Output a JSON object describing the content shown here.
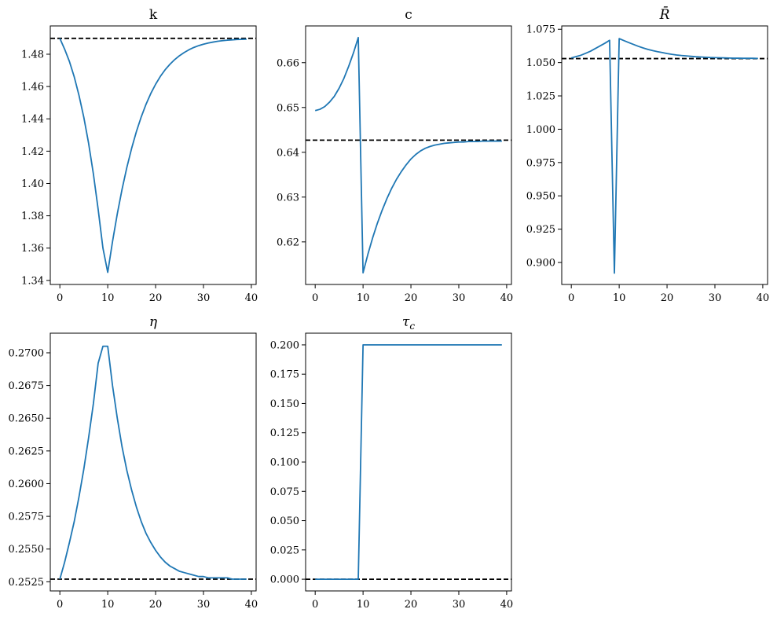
{
  "colors": {
    "series": "#1f77b4",
    "steady_state": "#000000"
  },
  "chart_data": [
    {
      "type": "line",
      "title": "k",
      "xlim": [
        -2,
        41
      ],
      "ylim": [
        1.3375,
        1.4975
      ],
      "xticks": [
        0,
        10,
        20,
        30,
        40
      ],
      "xtick_labels": [
        "0",
        "10",
        "20",
        "30",
        "40"
      ],
      "yticks": [
        1.34,
        1.36,
        1.38,
        1.4,
        1.42,
        1.44,
        1.46,
        1.48
      ],
      "ytick_labels": [
        "1.34",
        "1.36",
        "1.38",
        "1.40",
        "1.42",
        "1.44",
        "1.46",
        "1.48"
      ],
      "steady_state": 1.4898,
      "x": [
        0,
        1,
        2,
        3,
        4,
        5,
        6,
        7,
        8,
        9,
        10,
        11,
        12,
        13,
        14,
        15,
        16,
        17,
        18,
        19,
        20,
        21,
        22,
        23,
        24,
        25,
        26,
        27,
        28,
        29,
        30,
        31,
        32,
        33,
        34,
        35,
        36,
        37,
        38,
        39
      ],
      "values": [
        1.4898,
        1.4831,
        1.4755,
        1.466,
        1.4545,
        1.441,
        1.425,
        1.406,
        1.384,
        1.36,
        1.345,
        1.364,
        1.3812,
        1.3965,
        1.41,
        1.4218,
        1.4322,
        1.4412,
        1.449,
        1.4557,
        1.4614,
        1.4663,
        1.4704,
        1.4738,
        1.4767,
        1.4791,
        1.4811,
        1.4828,
        1.4842,
        1.4853,
        1.4862,
        1.4869,
        1.4875,
        1.488,
        1.4884,
        1.4887,
        1.4889,
        1.4891,
        1.4892,
        1.4893
      ]
    },
    {
      "type": "line",
      "title": "c",
      "xlim": [
        -2,
        41
      ],
      "ylim": [
        0.6105,
        0.6682
      ],
      "xticks": [
        0,
        10,
        20,
        30,
        40
      ],
      "xtick_labels": [
        "0",
        "10",
        "20",
        "30",
        "40"
      ],
      "yticks": [
        0.62,
        0.63,
        0.64,
        0.65,
        0.66
      ],
      "ytick_labels": [
        "0.62",
        "0.63",
        "0.64",
        "0.65",
        "0.66"
      ],
      "steady_state": 0.6427,
      "x": [
        0,
        1,
        2,
        3,
        4,
        5,
        6,
        7,
        8,
        9,
        10,
        11,
        12,
        13,
        14,
        15,
        16,
        17,
        18,
        19,
        20,
        21,
        22,
        23,
        24,
        25,
        26,
        27,
        28,
        29,
        30,
        31,
        32,
        33,
        34,
        35,
        36,
        37,
        38,
        39
      ],
      "values": [
        0.6493,
        0.6496,
        0.6502,
        0.6512,
        0.6525,
        0.6543,
        0.6565,
        0.6592,
        0.6622,
        0.6656,
        0.6131,
        0.6172,
        0.6209,
        0.6242,
        0.6271,
        0.6297,
        0.632,
        0.634,
        0.6357,
        0.6372,
        0.6385,
        0.6395,
        0.6403,
        0.6409,
        0.6413,
        0.6416,
        0.6418,
        0.642,
        0.6421,
        0.6422,
        0.6423,
        0.6423,
        0.6424,
        0.6424,
        0.6424,
        0.6425,
        0.6425,
        0.6425,
        0.6425,
        0.6425
      ]
    },
    {
      "type": "line",
      "title": "R̄",
      "xlim": [
        -2,
        41
      ],
      "ylim": [
        0.8835,
        1.0775
      ],
      "xticks": [
        0,
        10,
        20,
        30,
        40
      ],
      "xtick_labels": [
        "0",
        "10",
        "20",
        "30",
        "40"
      ],
      "yticks": [
        0.9,
        0.925,
        0.95,
        0.975,
        1.0,
        1.025,
        1.05,
        1.075
      ],
      "ytick_labels": [
        "0.900",
        "0.925",
        "0.950",
        "0.975",
        "1.000",
        "1.025",
        "1.050",
        "1.075"
      ],
      "steady_state": 1.053,
      "x": [
        0,
        1,
        2,
        3,
        4,
        5,
        6,
        7,
        8,
        9,
        10,
        11,
        12,
        13,
        14,
        15,
        16,
        17,
        18,
        19,
        20,
        21,
        22,
        23,
        24,
        25,
        26,
        27,
        28,
        29,
        30,
        31,
        32,
        33,
        34,
        35,
        36,
        37,
        38,
        39
      ],
      "values": [
        1.0535,
        1.0545,
        1.0555,
        1.057,
        1.0585,
        1.0605,
        1.0625,
        1.0645,
        1.0667,
        0.892,
        1.068,
        1.0665,
        1.065,
        1.0636,
        1.0622,
        1.061,
        1.0599,
        1.059,
        1.0582,
        1.0575,
        1.0568,
        1.0562,
        1.0557,
        1.0553,
        1.055,
        1.0547,
        1.0544,
        1.0542,
        1.054,
        1.0538,
        1.0537,
        1.0536,
        1.0535,
        1.0534,
        1.0533,
        1.0533,
        1.0532,
        1.0532,
        1.0532,
        1.0531
      ]
    },
    {
      "type": "line",
      "title": "η",
      "xlim": [
        -2,
        41
      ],
      "ylim": [
        0.2518,
        0.2715
      ],
      "xticks": [
        0,
        10,
        20,
        30,
        40
      ],
      "xtick_labels": [
        "0",
        "10",
        "20",
        "30",
        "40"
      ],
      "yticks": [
        0.2525,
        0.255,
        0.2575,
        0.26,
        0.2625,
        0.265,
        0.2675,
        0.27
      ],
      "ytick_labels": [
        "0.2525",
        "0.2550",
        "0.2575",
        "0.2600",
        "0.2625",
        "0.2650",
        "0.2675",
        "0.2700"
      ],
      "steady_state": 0.2527,
      "x": [
        0,
        1,
        2,
        3,
        4,
        5,
        6,
        7,
        8,
        9,
        10,
        11,
        12,
        13,
        14,
        15,
        16,
        17,
        18,
        19,
        20,
        21,
        22,
        23,
        24,
        25,
        26,
        27,
        28,
        29,
        30,
        31,
        32,
        33,
        34,
        35,
        36,
        37,
        38,
        39
      ],
      "values": [
        0.2527,
        0.254,
        0.2555,
        0.2571,
        0.259,
        0.2611,
        0.2635,
        0.2661,
        0.2692,
        0.2705,
        0.2705,
        0.2675,
        0.265,
        0.2628,
        0.261,
        0.2595,
        0.2582,
        0.2571,
        0.2562,
        0.2555,
        0.2549,
        0.2544,
        0.254,
        0.2537,
        0.2535,
        0.2533,
        0.2532,
        0.2531,
        0.253,
        0.2529,
        0.2529,
        0.2528,
        0.2528,
        0.2528,
        0.2528,
        0.2528,
        0.2527,
        0.2527,
        0.2527,
        0.2527
      ]
    },
    {
      "type": "line",
      "title": "τc",
      "xlim": [
        -2,
        41
      ],
      "ylim": [
        -0.01,
        0.21
      ],
      "xticks": [
        0,
        10,
        20,
        30,
        40
      ],
      "xtick_labels": [
        "0",
        "10",
        "20",
        "30",
        "40"
      ],
      "yticks": [
        0.0,
        0.025,
        0.05,
        0.075,
        0.1,
        0.125,
        0.15,
        0.175,
        0.2
      ],
      "ytick_labels": [
        "0.000",
        "0.025",
        "0.050",
        "0.075",
        "0.100",
        "0.125",
        "0.150",
        "0.175",
        "0.200"
      ],
      "steady_state": 0.0,
      "x": [
        0,
        1,
        2,
        3,
        4,
        5,
        6,
        7,
        8,
        9,
        10,
        11,
        12,
        13,
        14,
        15,
        16,
        17,
        18,
        19,
        20,
        21,
        22,
        23,
        24,
        25,
        26,
        27,
        28,
        29,
        30,
        31,
        32,
        33,
        34,
        35,
        36,
        37,
        38,
        39
      ],
      "values": [
        0,
        0,
        0,
        0,
        0,
        0,
        0,
        0,
        0,
        0,
        0.2,
        0.2,
        0.2,
        0.2,
        0.2,
        0.2,
        0.2,
        0.2,
        0.2,
        0.2,
        0.2,
        0.2,
        0.2,
        0.2,
        0.2,
        0.2,
        0.2,
        0.2,
        0.2,
        0.2,
        0.2,
        0.2,
        0.2,
        0.2,
        0.2,
        0.2,
        0.2,
        0.2,
        0.2,
        0.2
      ]
    }
  ]
}
